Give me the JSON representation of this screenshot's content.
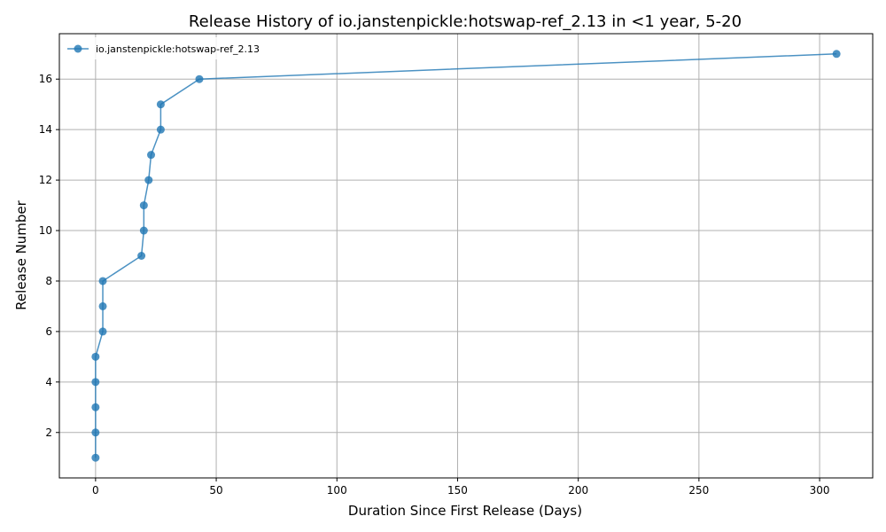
{
  "chart_data": {
    "type": "line",
    "title": "Release History of io.janstenpickle:hotswap-ref_2.13 in <1 year, 5-20",
    "xlabel": "Duration Since First Release (Days)",
    "ylabel": "Release Number",
    "xlim": [
      -15,
      322
    ],
    "ylim": [
      0.2,
      17.8
    ],
    "xticks": [
      0,
      50,
      100,
      150,
      200,
      250,
      300
    ],
    "yticks": [
      2,
      4,
      6,
      8,
      10,
      12,
      14,
      16
    ],
    "grid": true,
    "legend": "top-left",
    "series": [
      {
        "name": "io.janstenpickle:hotswap-ref_2.13",
        "color": "#1f77b4",
        "x": [
          0,
          0,
          0,
          0,
          0,
          3,
          3,
          3,
          19,
          20,
          20,
          22,
          23,
          27,
          27,
          43,
          307
        ],
        "y": [
          1,
          2,
          3,
          4,
          5,
          6,
          7,
          8,
          9,
          10,
          11,
          12,
          13,
          14,
          15,
          16,
          17
        ]
      }
    ]
  }
}
